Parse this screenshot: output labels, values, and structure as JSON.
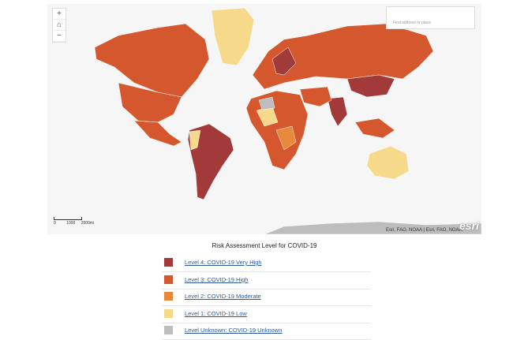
{
  "map": {
    "zoom_in": "+",
    "zoom_out": "−",
    "search_placeholder": "Find address or place",
    "scale_labels": [
      "0",
      "1000",
      "2000mi"
    ],
    "attribution": "Esri, FAO, NOAA | Esri, FAO, NOAA",
    "logo": "esri"
  },
  "legend": {
    "title": "Risk Assessment Level for COVID-19",
    "items": [
      {
        "label": "Level 4: COVID-19 Very High",
        "color": "#a33a3a"
      },
      {
        "label": "Level 3: COVID-19 High",
        "color": "#d4572e"
      },
      {
        "label": "Level 2: COVID-19 Moderate",
        "color": "#e8883a"
      },
      {
        "label": "Level 1: COVID-19 Low",
        "color": "#f7d98b"
      },
      {
        "label": "Level Unknown: COVID-19 Unknown",
        "color": "#bdbdbd"
      }
    ]
  }
}
